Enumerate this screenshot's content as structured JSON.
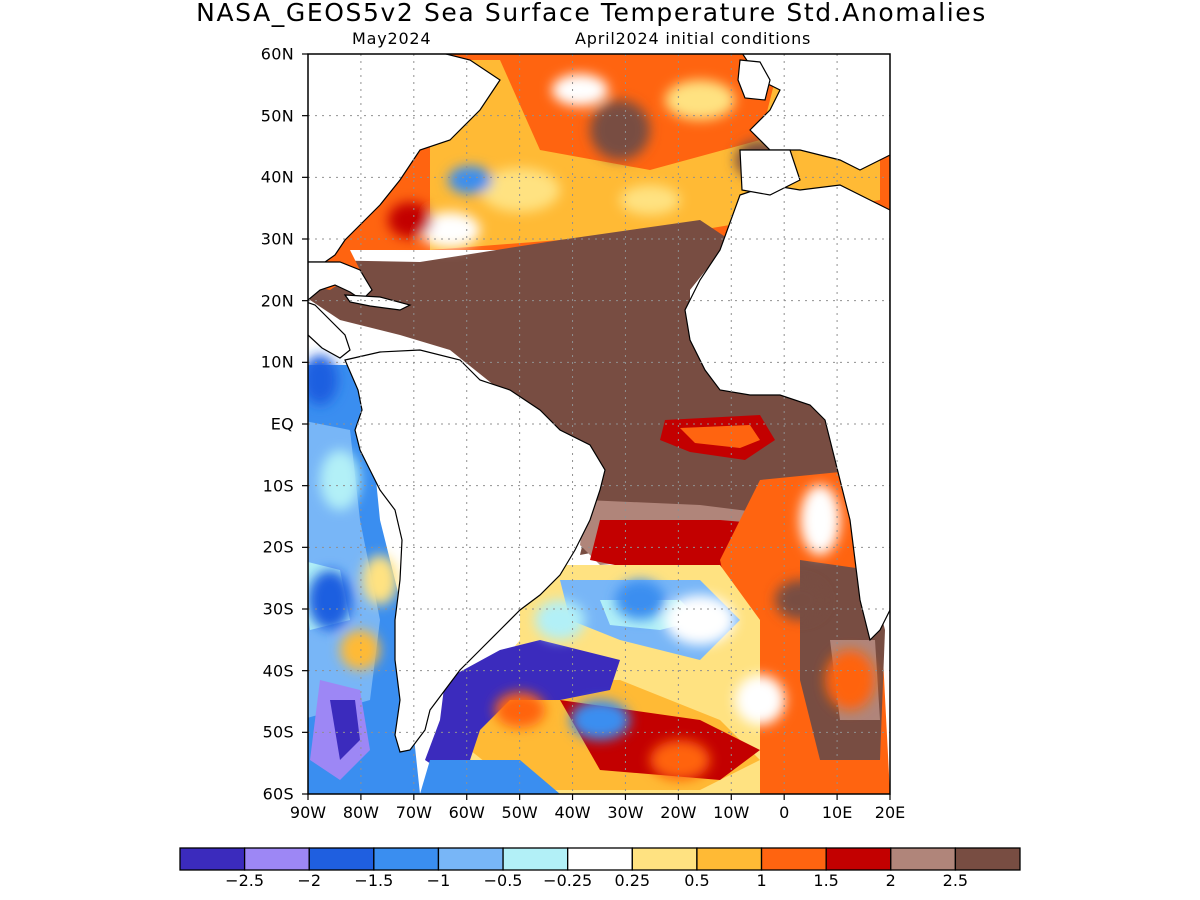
{
  "header": {
    "title": "NASA_GEOS5v2 Sea Surface Temperature Std.Anomalies",
    "subtitle_left": "May2024",
    "subtitle_right": "April2024 initial conditions"
  },
  "map": {
    "region": "Atlantic Ocean",
    "lon_range": [
      -90,
      20
    ],
    "lat_range": [
      -60,
      60
    ],
    "grid": true,
    "lat_labels": [
      "60N",
      "50N",
      "40N",
      "30N",
      "20N",
      "10N",
      "EQ",
      "10S",
      "20S",
      "30S",
      "40S",
      "50S",
      "60S"
    ],
    "lon_labels": [
      "90W",
      "80W",
      "70W",
      "60W",
      "50W",
      "40W",
      "30W",
      "20W",
      "10W",
      "0",
      "10E",
      "20E"
    ],
    "anomaly_regions": [
      {
        "area": "Tropical North Atlantic (20N-EQ)",
        "level": "above 2.5"
      },
      {
        "area": "Gulf of Guinea / eastern equatorial Atlantic",
        "level": "1 to 2"
      },
      {
        "area": "North Atlantic mid-latitudes (30N-60N)",
        "level": "0.5 to 2.5"
      },
      {
        "area": "Southwest Atlantic off Argentina (40S-50S)",
        "level": "below -2.5"
      },
      {
        "area": "Eastern tropical Pacific west of South America",
        "level": "-0.5 to -2"
      },
      {
        "area": "South Atlantic 25S-40S",
        "level": "-1 to 1"
      },
      {
        "area": "Southeast Atlantic off southern Africa",
        "level": "1 to 2.5"
      }
    ]
  },
  "colorbar": {
    "labels": [
      "-2.5",
      "-2",
      "-1.5",
      "-1",
      "-0.5",
      "-0.25",
      "0.25",
      "0.5",
      "1",
      "1.5",
      "2",
      "2.5"
    ],
    "colors": [
      "#3b2bbd",
      "#9d87f5",
      "#1f5fe0",
      "#3a8ef0",
      "#78b6f7",
      "#b2f0f7",
      "#ffffff",
      "#ffe281",
      "#ffba35",
      "#ff6410",
      "#c30000",
      "#b0857a",
      "#784d42"
    ]
  }
}
